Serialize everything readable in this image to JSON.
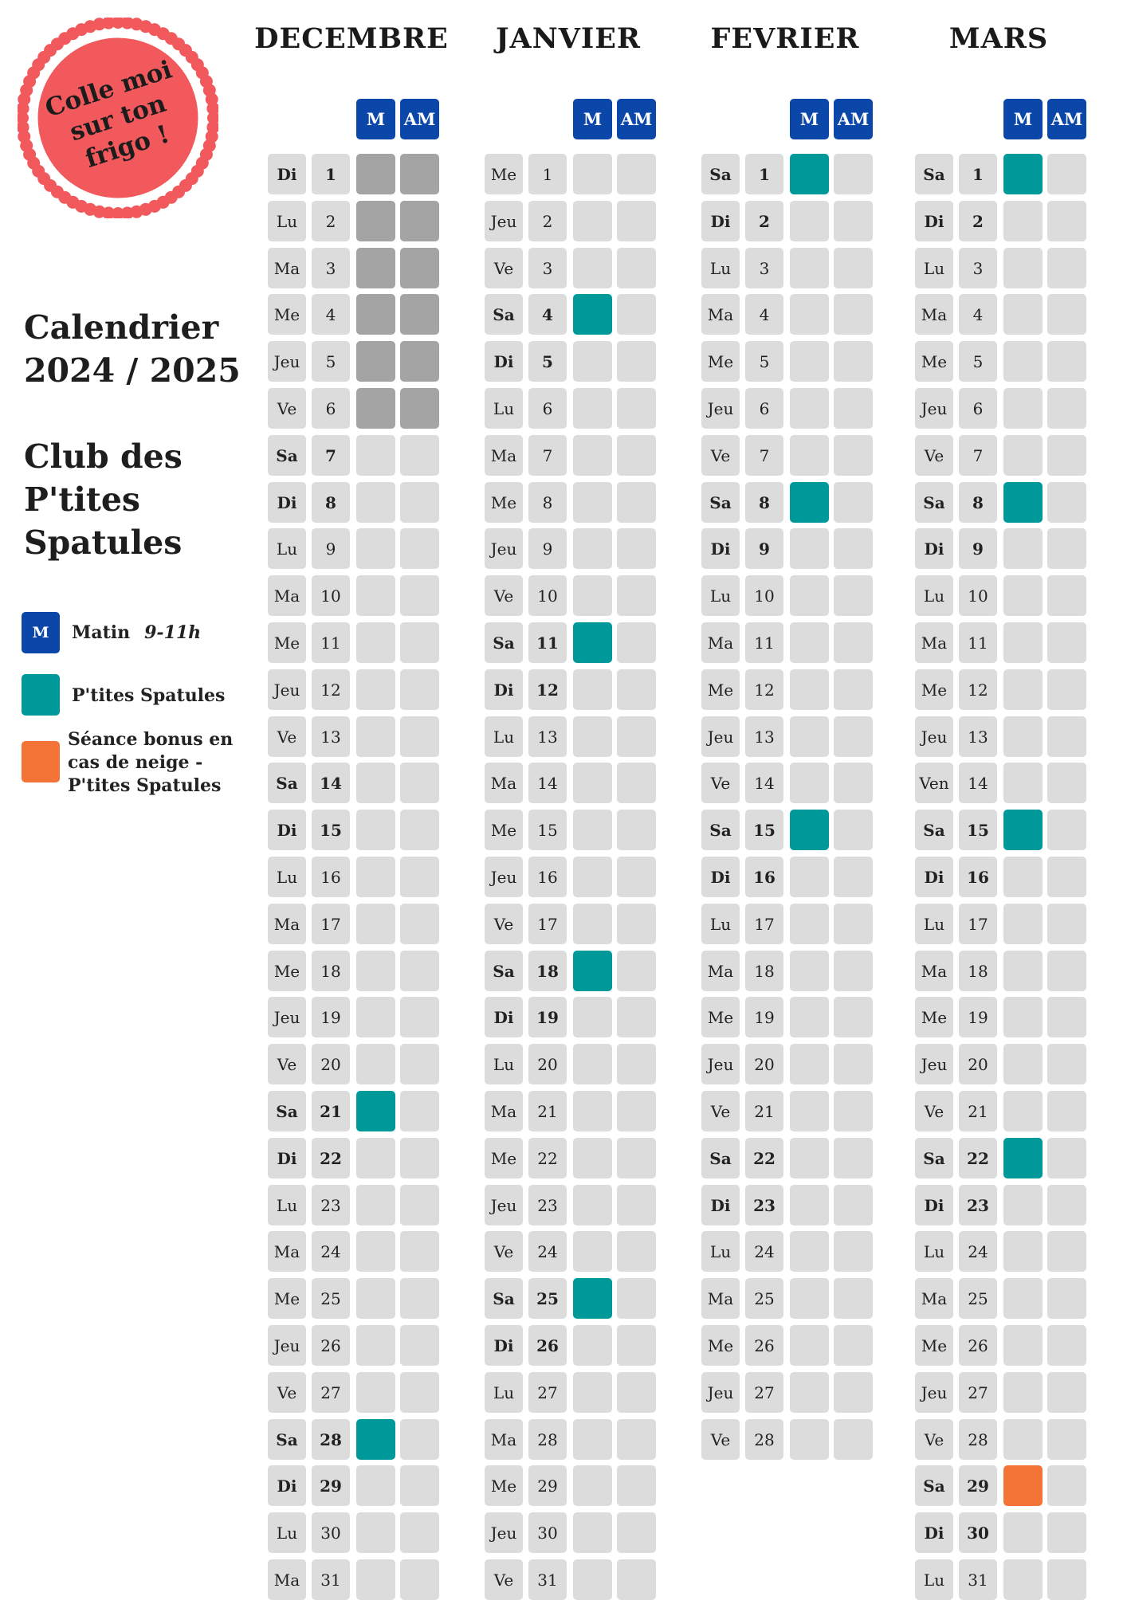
{
  "stamp": {
    "lines": [
      "Colle moi",
      "sur ton",
      "frigo !"
    ]
  },
  "sidebar": {
    "title_lines": [
      "Calendrier",
      "2024 / 2025"
    ],
    "club_lines": [
      "Club des",
      "P'tites",
      "Spatules"
    ]
  },
  "legend": {
    "matin_badge": "M",
    "matin_label": "Matin",
    "matin_hours": "9-11h",
    "ptites_label": "P'tites Spatules",
    "bonus_lines": [
      "Séance bonus en",
      "cas de neige -",
      "P'tites Spatules"
    ]
  },
  "header_labels": {
    "morning": "M",
    "afternoon": "AM"
  },
  "colors": {
    "blue": "#0b47a8",
    "teal": "#00999a",
    "orange": "#f47437",
    "closed": "#a4a4a4",
    "empty": "#dcdcdc",
    "stamp_red": "#f2595c"
  },
  "months": [
    {
      "name": "DECEMBRE",
      "days": [
        {
          "d": "Di",
          "n": "1",
          "b": true,
          "m": "closed",
          "am": "closed"
        },
        {
          "d": "Lu",
          "n": "2",
          "b": false,
          "m": "closed",
          "am": "closed"
        },
        {
          "d": "Ma",
          "n": "3",
          "b": false,
          "m": "closed",
          "am": "closed"
        },
        {
          "d": "Me",
          "n": "4",
          "b": false,
          "m": "closed",
          "am": "closed"
        },
        {
          "d": "Jeu",
          "n": "5",
          "b": false,
          "m": "closed",
          "am": "closed"
        },
        {
          "d": "Ve",
          "n": "6",
          "b": false,
          "m": "closed",
          "am": "closed"
        },
        {
          "d": "Sa",
          "n": "7",
          "b": true,
          "m": "",
          "am": ""
        },
        {
          "d": "Di",
          "n": "8",
          "b": true,
          "m": "",
          "am": ""
        },
        {
          "d": "Lu",
          "n": "9",
          "b": false,
          "m": "",
          "am": ""
        },
        {
          "d": "Ma",
          "n": "10",
          "b": false,
          "m": "",
          "am": ""
        },
        {
          "d": "Me",
          "n": "11",
          "b": false,
          "m": "",
          "am": ""
        },
        {
          "d": "Jeu",
          "n": "12",
          "b": false,
          "m": "",
          "am": ""
        },
        {
          "d": "Ve",
          "n": "13",
          "b": false,
          "m": "",
          "am": ""
        },
        {
          "d": "Sa",
          "n": "14",
          "b": true,
          "m": "",
          "am": ""
        },
        {
          "d": "Di",
          "n": "15",
          "b": true,
          "m": "",
          "am": ""
        },
        {
          "d": "Lu",
          "n": "16",
          "b": false,
          "m": "",
          "am": ""
        },
        {
          "d": "Ma",
          "n": "17",
          "b": false,
          "m": "",
          "am": ""
        },
        {
          "d": "Me",
          "n": "18",
          "b": false,
          "m": "",
          "am": ""
        },
        {
          "d": "Jeu",
          "n": "19",
          "b": false,
          "m": "",
          "am": ""
        },
        {
          "d": "Ve",
          "n": "20",
          "b": false,
          "m": "",
          "am": ""
        },
        {
          "d": "Sa",
          "n": "21",
          "b": true,
          "m": "session",
          "am": ""
        },
        {
          "d": "Di",
          "n": "22",
          "b": true,
          "m": "",
          "am": ""
        },
        {
          "d": "Lu",
          "n": "23",
          "b": false,
          "m": "",
          "am": ""
        },
        {
          "d": "Ma",
          "n": "24",
          "b": false,
          "m": "",
          "am": ""
        },
        {
          "d": "Me",
          "n": "25",
          "b": false,
          "m": "",
          "am": ""
        },
        {
          "d": "Jeu",
          "n": "26",
          "b": false,
          "m": "",
          "am": ""
        },
        {
          "d": "Ve",
          "n": "27",
          "b": false,
          "m": "",
          "am": ""
        },
        {
          "d": "Sa",
          "n": "28",
          "b": true,
          "m": "session",
          "am": ""
        },
        {
          "d": "Di",
          "n": "29",
          "b": true,
          "m": "",
          "am": ""
        },
        {
          "d": "Lu",
          "n": "30",
          "b": false,
          "m": "",
          "am": ""
        },
        {
          "d": "Ma",
          "n": "31",
          "b": false,
          "m": "",
          "am": ""
        }
      ]
    },
    {
      "name": "JANVIER",
      "days": [
        {
          "d": "Me",
          "n": "1",
          "b": false,
          "m": "",
          "am": ""
        },
        {
          "d": "Jeu",
          "n": "2",
          "b": false,
          "m": "",
          "am": ""
        },
        {
          "d": "Ve",
          "n": "3",
          "b": false,
          "m": "",
          "am": ""
        },
        {
          "d": "Sa",
          "n": "4",
          "b": true,
          "m": "session",
          "am": ""
        },
        {
          "d": "Di",
          "n": "5",
          "b": true,
          "m": "",
          "am": ""
        },
        {
          "d": "Lu",
          "n": "6",
          "b": false,
          "m": "",
          "am": ""
        },
        {
          "d": "Ma",
          "n": "7",
          "b": false,
          "m": "",
          "am": ""
        },
        {
          "d": "Me",
          "n": "8",
          "b": false,
          "m": "",
          "am": ""
        },
        {
          "d": "Jeu",
          "n": "9",
          "b": false,
          "m": "",
          "am": ""
        },
        {
          "d": "Ve",
          "n": "10",
          "b": false,
          "m": "",
          "am": ""
        },
        {
          "d": "Sa",
          "n": "11",
          "b": true,
          "m": "session",
          "am": ""
        },
        {
          "d": "Di",
          "n": "12",
          "b": true,
          "m": "",
          "am": ""
        },
        {
          "d": "Lu",
          "n": "13",
          "b": false,
          "m": "",
          "am": ""
        },
        {
          "d": "Ma",
          "n": "14",
          "b": false,
          "m": "",
          "am": ""
        },
        {
          "d": "Me",
          "n": "15",
          "b": false,
          "m": "",
          "am": ""
        },
        {
          "d": "Jeu",
          "n": "16",
          "b": false,
          "m": "",
          "am": ""
        },
        {
          "d": "Ve",
          "n": "17",
          "b": false,
          "m": "",
          "am": ""
        },
        {
          "d": "Sa",
          "n": "18",
          "b": true,
          "m": "session",
          "am": ""
        },
        {
          "d": "Di",
          "n": "19",
          "b": true,
          "m": "",
          "am": ""
        },
        {
          "d": "Lu",
          "n": "20",
          "b": false,
          "m": "",
          "am": ""
        },
        {
          "d": "Ma",
          "n": "21",
          "b": false,
          "m": "",
          "am": ""
        },
        {
          "d": "Me",
          "n": "22",
          "b": false,
          "m": "",
          "am": ""
        },
        {
          "d": "Jeu",
          "n": "23",
          "b": false,
          "m": "",
          "am": ""
        },
        {
          "d": "Ve",
          "n": "24",
          "b": false,
          "m": "",
          "am": ""
        },
        {
          "d": "Sa",
          "n": "25",
          "b": true,
          "m": "session",
          "am": ""
        },
        {
          "d": "Di",
          "n": "26",
          "b": true,
          "m": "",
          "am": ""
        },
        {
          "d": "Lu",
          "n": "27",
          "b": false,
          "m": "",
          "am": ""
        },
        {
          "d": "Ma",
          "n": "28",
          "b": false,
          "m": "",
          "am": ""
        },
        {
          "d": "Me",
          "n": "29",
          "b": false,
          "m": "",
          "am": ""
        },
        {
          "d": "Jeu",
          "n": "30",
          "b": false,
          "m": "",
          "am": ""
        },
        {
          "d": "Ve",
          "n": "31",
          "b": false,
          "m": "",
          "am": ""
        }
      ]
    },
    {
      "name": "FEVRIER",
      "days": [
        {
          "d": "Sa",
          "n": "1",
          "b": true,
          "m": "session",
          "am": ""
        },
        {
          "d": "Di",
          "n": "2",
          "b": true,
          "m": "",
          "am": ""
        },
        {
          "d": "Lu",
          "n": "3",
          "b": false,
          "m": "",
          "am": ""
        },
        {
          "d": "Ma",
          "n": "4",
          "b": false,
          "m": "",
          "am": ""
        },
        {
          "d": "Me",
          "n": "5",
          "b": false,
          "m": "",
          "am": ""
        },
        {
          "d": "Jeu",
          "n": "6",
          "b": false,
          "m": "",
          "am": ""
        },
        {
          "d": "Ve",
          "n": "7",
          "b": false,
          "m": "",
          "am": ""
        },
        {
          "d": "Sa",
          "n": "8",
          "b": true,
          "m": "session",
          "am": ""
        },
        {
          "d": "Di",
          "n": "9",
          "b": true,
          "m": "",
          "am": ""
        },
        {
          "d": "Lu",
          "n": "10",
          "b": false,
          "m": "",
          "am": ""
        },
        {
          "d": "Ma",
          "n": "11",
          "b": false,
          "m": "",
          "am": ""
        },
        {
          "d": "Me",
          "n": "12",
          "b": false,
          "m": "",
          "am": ""
        },
        {
          "d": "Jeu",
          "n": "13",
          "b": false,
          "m": "",
          "am": ""
        },
        {
          "d": "Ve",
          "n": "14",
          "b": false,
          "m": "",
          "am": ""
        },
        {
          "d": "Sa",
          "n": "15",
          "b": true,
          "m": "session",
          "am": ""
        },
        {
          "d": "Di",
          "n": "16",
          "b": true,
          "m": "",
          "am": ""
        },
        {
          "d": "Lu",
          "n": "17",
          "b": false,
          "m": "",
          "am": ""
        },
        {
          "d": "Ma",
          "n": "18",
          "b": false,
          "m": "",
          "am": ""
        },
        {
          "d": "Me",
          "n": "19",
          "b": false,
          "m": "",
          "am": ""
        },
        {
          "d": "Jeu",
          "n": "20",
          "b": false,
          "m": "",
          "am": ""
        },
        {
          "d": "Ve",
          "n": "21",
          "b": false,
          "m": "",
          "am": ""
        },
        {
          "d": "Sa",
          "n": "22",
          "b": true,
          "m": "",
          "am": ""
        },
        {
          "d": "Di",
          "n": "23",
          "b": true,
          "m": "",
          "am": ""
        },
        {
          "d": "Lu",
          "n": "24",
          "b": false,
          "m": "",
          "am": ""
        },
        {
          "d": "Ma",
          "n": "25",
          "b": false,
          "m": "",
          "am": ""
        },
        {
          "d": "Me",
          "n": "26",
          "b": false,
          "m": "",
          "am": ""
        },
        {
          "d": "Jeu",
          "n": "27",
          "b": false,
          "m": "",
          "am": ""
        },
        {
          "d": "Ve",
          "n": "28",
          "b": false,
          "m": "",
          "am": ""
        }
      ]
    },
    {
      "name": "MARS",
      "days": [
        {
          "d": "Sa",
          "n": "1",
          "b": true,
          "m": "session",
          "am": ""
        },
        {
          "d": "Di",
          "n": "2",
          "b": true,
          "m": "",
          "am": ""
        },
        {
          "d": "Lu",
          "n": "3",
          "b": false,
          "m": "",
          "am": ""
        },
        {
          "d": "Ma",
          "n": "4",
          "b": false,
          "m": "",
          "am": ""
        },
        {
          "d": "Me",
          "n": "5",
          "b": false,
          "m": "",
          "am": ""
        },
        {
          "d": "Jeu",
          "n": "6",
          "b": false,
          "m": "",
          "am": ""
        },
        {
          "d": "Ve",
          "n": "7",
          "b": false,
          "m": "",
          "am": ""
        },
        {
          "d": "Sa",
          "n": "8",
          "b": true,
          "m": "session",
          "am": ""
        },
        {
          "d": "Di",
          "n": "9",
          "b": true,
          "m": "",
          "am": ""
        },
        {
          "d": "Lu",
          "n": "10",
          "b": false,
          "m": "",
          "am": ""
        },
        {
          "d": "Ma",
          "n": "11",
          "b": false,
          "m": "",
          "am": ""
        },
        {
          "d": "Me",
          "n": "12",
          "b": false,
          "m": "",
          "am": ""
        },
        {
          "d": "Jeu",
          "n": "13",
          "b": false,
          "m": "",
          "am": ""
        },
        {
          "d": "Ven",
          "n": "14",
          "b": false,
          "m": "",
          "am": ""
        },
        {
          "d": "Sa",
          "n": "15",
          "b": true,
          "m": "session",
          "am": ""
        },
        {
          "d": "Di",
          "n": "16",
          "b": true,
          "m": "",
          "am": ""
        },
        {
          "d": "Lu",
          "n": "17",
          "b": false,
          "m": "",
          "am": ""
        },
        {
          "d": "Ma",
          "n": "18",
          "b": false,
          "m": "",
          "am": ""
        },
        {
          "d": "Me",
          "n": "19",
          "b": false,
          "m": "",
          "am": ""
        },
        {
          "d": "Jeu",
          "n": "20",
          "b": false,
          "m": "",
          "am": ""
        },
        {
          "d": "Ve",
          "n": "21",
          "b": false,
          "m": "",
          "am": ""
        },
        {
          "d": "Sa",
          "n": "22",
          "b": true,
          "m": "session",
          "am": ""
        },
        {
          "d": "Di",
          "n": "23",
          "b": true,
          "m": "",
          "am": ""
        },
        {
          "d": "Lu",
          "n": "24",
          "b": false,
          "m": "",
          "am": ""
        },
        {
          "d": "Ma",
          "n": "25",
          "b": false,
          "m": "",
          "am": ""
        },
        {
          "d": "Me",
          "n": "26",
          "b": false,
          "m": "",
          "am": ""
        },
        {
          "d": "Jeu",
          "n": "27",
          "b": false,
          "m": "",
          "am": ""
        },
        {
          "d": "Ve",
          "n": "28",
          "b": false,
          "m": "",
          "am": ""
        },
        {
          "d": "Sa",
          "n": "29",
          "b": true,
          "m": "bonus",
          "am": ""
        },
        {
          "d": "Di",
          "n": "30",
          "b": true,
          "m": "",
          "am": ""
        },
        {
          "d": "Lu",
          "n": "31",
          "b": false,
          "m": "",
          "am": ""
        }
      ]
    }
  ]
}
